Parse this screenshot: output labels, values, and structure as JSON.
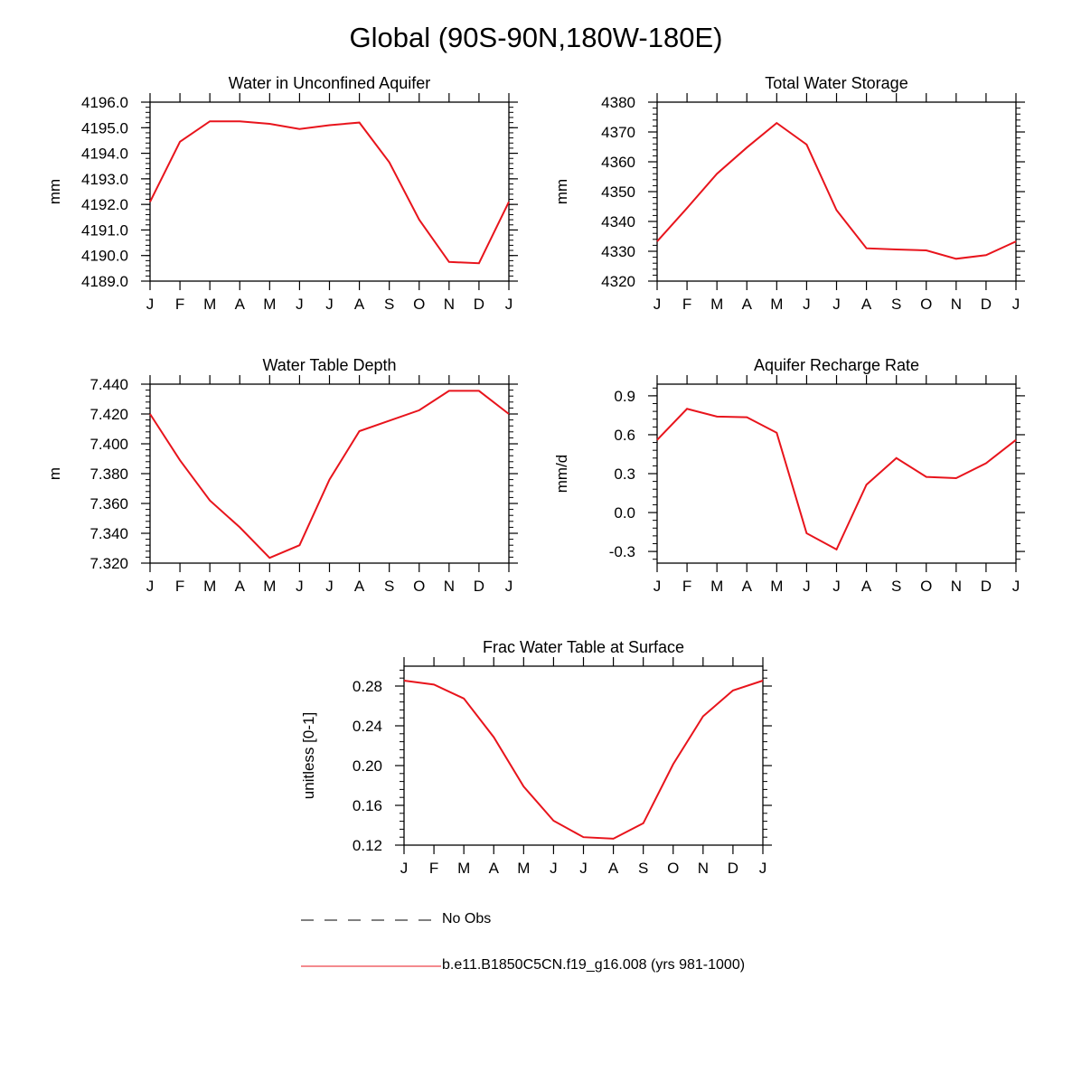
{
  "title": "Global (90S-90N,180W-180E)",
  "months": [
    "J",
    "F",
    "M",
    "A",
    "M",
    "J",
    "J",
    "A",
    "S",
    "O",
    "N",
    "D",
    "J"
  ],
  "colors": {
    "model": "#e8141c",
    "obs": "#000000",
    "axis": "#000000"
  },
  "legend": {
    "obs_label": "No Obs",
    "model_label": "b.e11.B1850C5CN.f19_g16.008 (yrs 981-1000)"
  },
  "chart_data": [
    {
      "type": "line",
      "title": "Water in Unconfined Aquifer",
      "ylabel": "mm",
      "ylim": [
        4189.0,
        4196.0
      ],
      "yticks": [
        4189.0,
        4190.0,
        4191.0,
        4192.0,
        4193.0,
        4194.0,
        4195.0,
        4196.0
      ],
      "tick_labels": [
        "4189.0",
        "4190.0",
        "4191.0",
        "4192.0",
        "4193.0",
        "4194.0",
        "4195.0",
        "4196.0"
      ],
      "minor_step": 0.2,
      "values": [
        4192.1,
        4194.45,
        4195.25,
        4195.25,
        4195.15,
        4194.95,
        4195.1,
        4195.2,
        4193.65,
        4191.4,
        4189.75,
        4189.7,
        4192.1
      ]
    },
    {
      "type": "line",
      "title": "Total Water Storage",
      "ylabel": "mm",
      "ylim": [
        4320,
        4380
      ],
      "yticks": [
        4320,
        4330,
        4340,
        4350,
        4360,
        4370,
        4380
      ],
      "tick_labels": [
        "4320",
        "4330",
        "4340",
        "4350",
        "4360",
        "4370",
        "4380"
      ],
      "minor_step": 2,
      "values": [
        4333.3,
        4344.5,
        4356.0,
        4364.8,
        4373.0,
        4365.8,
        4343.8,
        4331.0,
        4330.6,
        4330.3,
        4327.5,
        4328.7,
        4333.3
      ]
    },
    {
      "type": "line",
      "title": "Water Table Depth",
      "ylabel": "m",
      "ylim": [
        7.32,
        7.44
      ],
      "yticks": [
        7.32,
        7.34,
        7.36,
        7.38,
        7.4,
        7.42,
        7.44
      ],
      "tick_labels": [
        "7.320",
        "7.340",
        "7.360",
        "7.380",
        "7.400",
        "7.420",
        "7.440"
      ],
      "minor_step": 0.004,
      "values": [
        7.42,
        7.389,
        7.362,
        7.344,
        7.3235,
        7.332,
        7.376,
        7.4085,
        7.4155,
        7.4225,
        7.4355,
        7.4355,
        7.42
      ]
    },
    {
      "type": "line",
      "title": "Aquifer Recharge Rate",
      "ylabel": "mm/d",
      "ylim": [
        -0.39,
        0.99
      ],
      "yticks": [
        -0.3,
        0.0,
        0.3,
        0.6,
        0.9
      ],
      "tick_labels": [
        "-0.3",
        "0.0",
        "0.3",
        "0.6",
        "0.9"
      ],
      "minor_step": 0.06,
      "values": [
        0.56,
        0.8,
        0.74,
        0.735,
        0.615,
        -0.16,
        -0.285,
        0.215,
        0.42,
        0.275,
        0.265,
        0.38,
        0.56
      ]
    },
    {
      "type": "line",
      "title": "Frac Water Table at Surface",
      "ylabel": "unitless [0-1]",
      "ylim": [
        0.12,
        0.3
      ],
      "yticks": [
        0.12,
        0.16,
        0.2,
        0.24,
        0.28
      ],
      "tick_labels": [
        "0.12",
        "0.16",
        "0.20",
        "0.24",
        "0.28"
      ],
      "minor_step": 0.008,
      "values": [
        0.2855,
        0.2815,
        0.2675,
        0.2285,
        0.179,
        0.1445,
        0.128,
        0.1265,
        0.142,
        0.2015,
        0.2495,
        0.2755,
        0.2855
      ]
    }
  ]
}
